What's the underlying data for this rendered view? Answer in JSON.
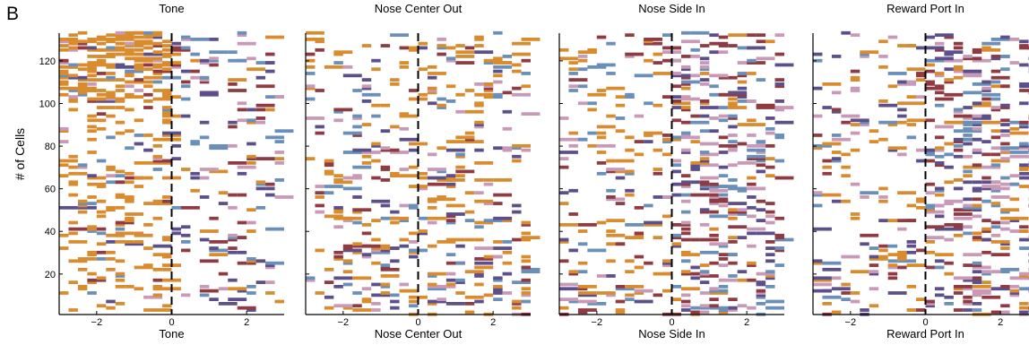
{
  "figure_label": "B",
  "chart_data": {
    "type": "heatmap",
    "ylabel": "# of Cells",
    "ylim": [
      1,
      133
    ],
    "yticks": [
      20,
      40,
      60,
      80,
      100,
      120
    ],
    "xlim": [
      -3,
      3
    ],
    "xticks": [
      -2,
      0,
      2
    ],
    "xtick_labels": [
      "−2",
      "0",
      "2"
    ],
    "event_line_x": 0,
    "colors": {
      "orange": "#d98c2f",
      "brown": "#8f3b44",
      "purple": "#5c4f8a",
      "pink": "#c99ab8",
      "blue": "#6a8fb8"
    },
    "panels": [
      {
        "title": "Tone",
        "xlabel": "Tone",
        "bias": "early"
      },
      {
        "title": "Nose Center Out",
        "xlabel": "Nose Center Out",
        "bias": "mixed"
      },
      {
        "title": "Nose Side In",
        "xlabel": "Nose Side In",
        "bias": "late"
      },
      {
        "title": "Reward Port In",
        "xlabel": "Reward Port In",
        "bias": "late"
      }
    ]
  }
}
